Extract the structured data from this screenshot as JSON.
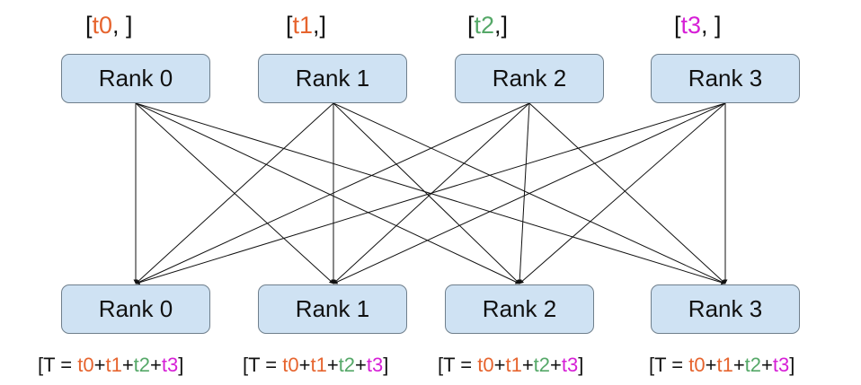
{
  "colors": {
    "box_fill": "#cfe2f3",
    "box_border": "#6f7f8c",
    "t0": "#e6642e",
    "t1": "#e6642e",
    "t2": "#55a868",
    "t3": "#d61fd6",
    "edge": "#111111"
  },
  "top_ranks": [
    {
      "label": "Rank 0",
      "bracket_open": "[",
      "tensor": "t0",
      "tail": ", ]"
    },
    {
      "label": "Rank 1",
      "bracket_open": "[",
      "tensor": "t1",
      "tail": ",]"
    },
    {
      "label": "Rank 2",
      "bracket_open": "[",
      "tensor": "t2",
      "tail": ",]"
    },
    {
      "label": "Rank 3",
      "bracket_open": "[",
      "tensor": "t3",
      "tail": ", ]"
    }
  ],
  "bottom_ranks": [
    {
      "label": "Rank 0"
    },
    {
      "label": "Rank 1"
    },
    {
      "label": "Rank 2"
    },
    {
      "label": "Rank 3"
    }
  ],
  "result_label": {
    "prefix": "[T = ",
    "t0": "t0",
    "plus": "+",
    "t1": "t1",
    "t2": "t2",
    "t3": "t3",
    "suffix": "]"
  }
}
